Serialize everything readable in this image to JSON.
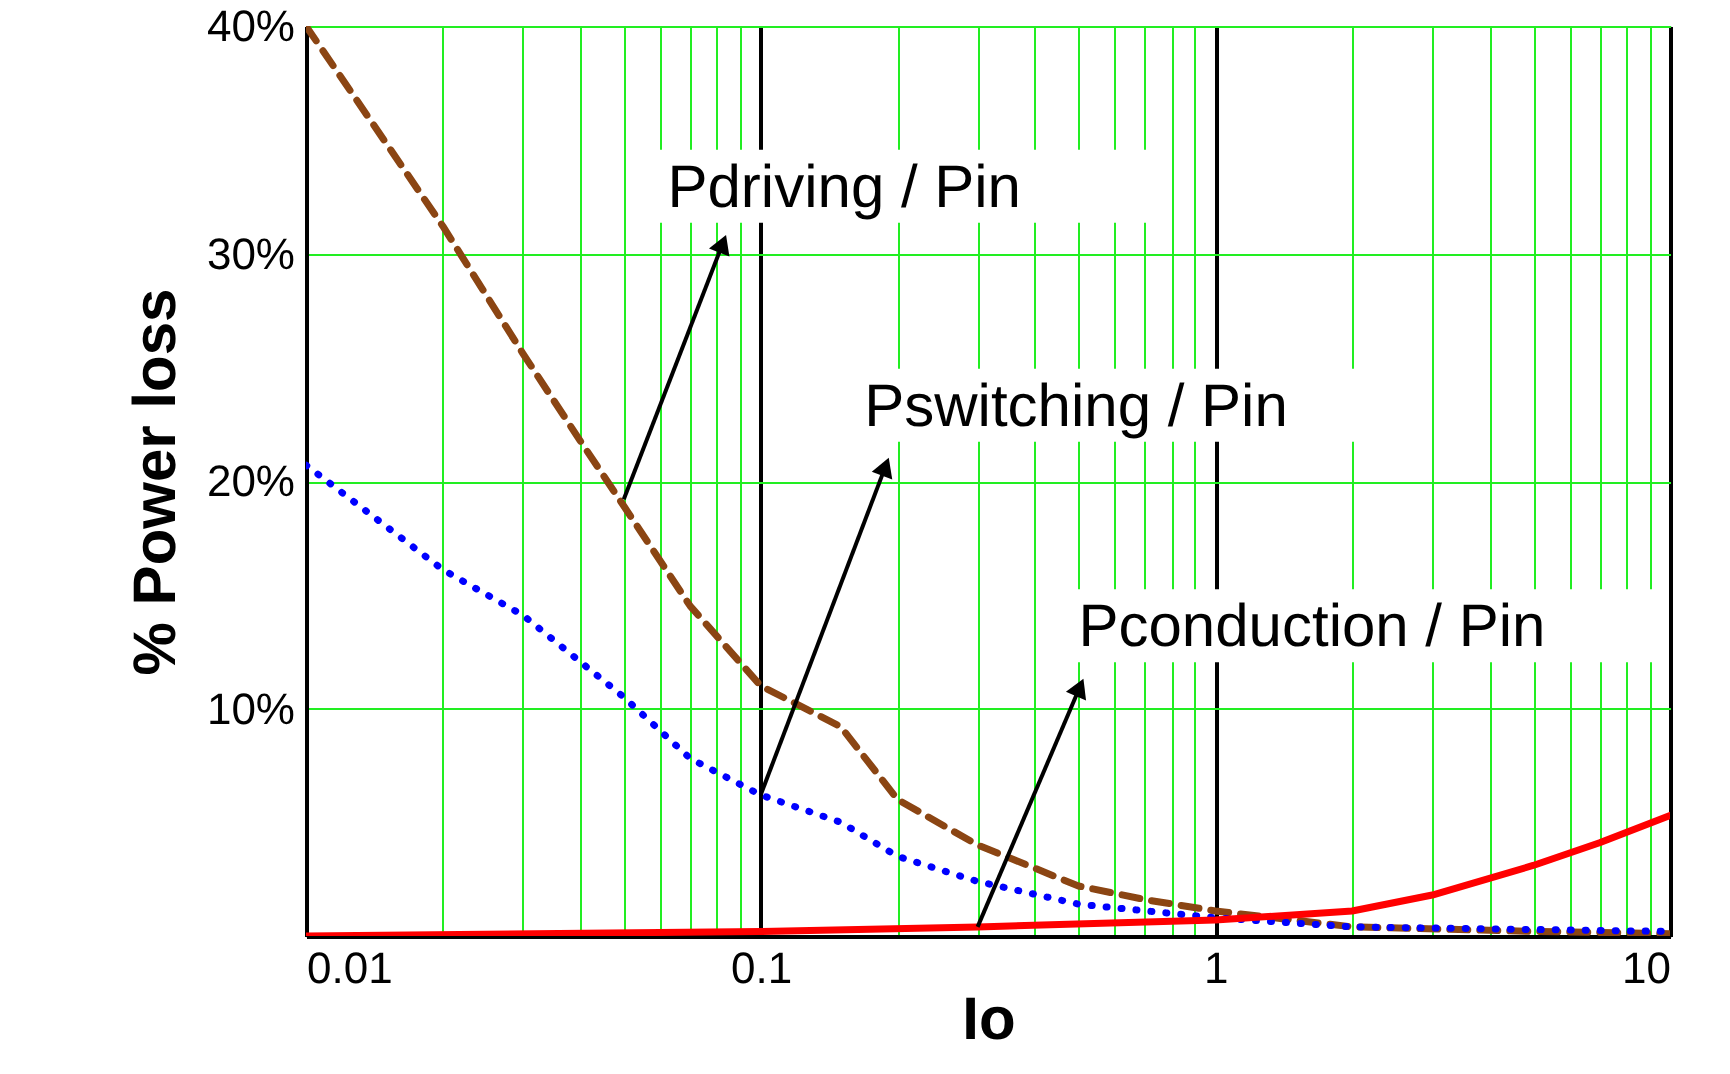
{
  "chart_data": {
    "type": "line",
    "xlabel": "Io",
    "ylabel": "% Power loss",
    "log": "x",
    "grid": true,
    "xlim": [
      0.01,
      10
    ],
    "ylim": [
      0,
      40
    ],
    "xticks": [
      0.01,
      {
        "value": 0.02,
        "label": null
      },
      {
        "value": 0.03,
        "label": null
      },
      {
        "value": 0.04,
        "label": null
      },
      {
        "value": 0.05,
        "label": null
      },
      {
        "value": 0.06,
        "label": null
      },
      {
        "value": 0.07,
        "label": null
      },
      {
        "value": 0.08,
        "label": null
      },
      {
        "value": 0.09,
        "label": null
      },
      0.1,
      {
        "value": 0.2,
        "label": null
      },
      {
        "value": 0.3,
        "label": null
      },
      {
        "value": 0.4,
        "label": null
      },
      {
        "value": 0.5,
        "label": null
      },
      {
        "value": 0.6,
        "label": null
      },
      {
        "value": 0.7,
        "label": null
      },
      {
        "value": 0.8,
        "label": null
      },
      {
        "value": 0.9,
        "label": null
      },
      1,
      {
        "value": 2,
        "label": null
      },
      {
        "value": 3,
        "label": null
      },
      {
        "value": 4,
        "label": null
      },
      {
        "value": 5,
        "label": null
      },
      {
        "value": 6,
        "label": null
      },
      {
        "value": 7,
        "label": null
      },
      {
        "value": 8,
        "label": null
      },
      {
        "value": 9,
        "label": null
      },
      10
    ],
    "yticks": [
      {
        "value": 10,
        "label": "10%"
      },
      {
        "value": 20,
        "label": "20%"
      },
      {
        "value": 30,
        "label": "30%"
      },
      {
        "value": 40,
        "label": "40%"
      }
    ],
    "series": [
      {
        "color": "#8b4513",
        "line_style": "dashed",
        "x": [
          0.01,
          0.02,
          0.03,
          0.04,
          0.05,
          0.07,
          0.1,
          0.15,
          0.2,
          0.3,
          0.5,
          0.7,
          1,
          2,
          5,
          10
        ],
        "values": [
          40,
          31.2,
          25.6,
          21.8,
          18.9,
          14.5,
          11,
          9.2,
          6,
          4,
          2.2,
          1.6,
          1.1,
          0.4,
          0.2,
          0.1
        ]
      },
      {
        "color": "#0000ff",
        "line_style": "dotted",
        "x": [
          0.01,
          0.02,
          0.03,
          0.05,
          0.07,
          0.1,
          0.15,
          0.2,
          0.3,
          0.5,
          1,
          2,
          10
        ],
        "values": [
          20.7,
          16.1,
          14.1,
          10.5,
          7.8,
          6.2,
          5,
          3.5,
          2.4,
          1.4,
          0.8,
          0.4,
          0.2
        ]
      },
      {
        "color": "#ff0000",
        "line_style": "solid",
        "x": [
          0.01,
          0.1,
          0.3,
          1,
          2,
          3,
          5,
          7,
          10
        ],
        "values": [
          0,
          0.2,
          0.4,
          0.7,
          1.1,
          1.8,
          3.1,
          4.1,
          5.3
        ]
      }
    ],
    "annotations": [
      {
        "text": "Pdriving / Pin",
        "x": 0.05,
        "y": 19.2
      },
      {
        "text": "Pswitching / Pin",
        "x": 0.1,
        "y": 6.2
      },
      {
        "text": "Pconduction / Pin",
        "x": 0.3,
        "y": 0.4
      }
    ]
  }
}
